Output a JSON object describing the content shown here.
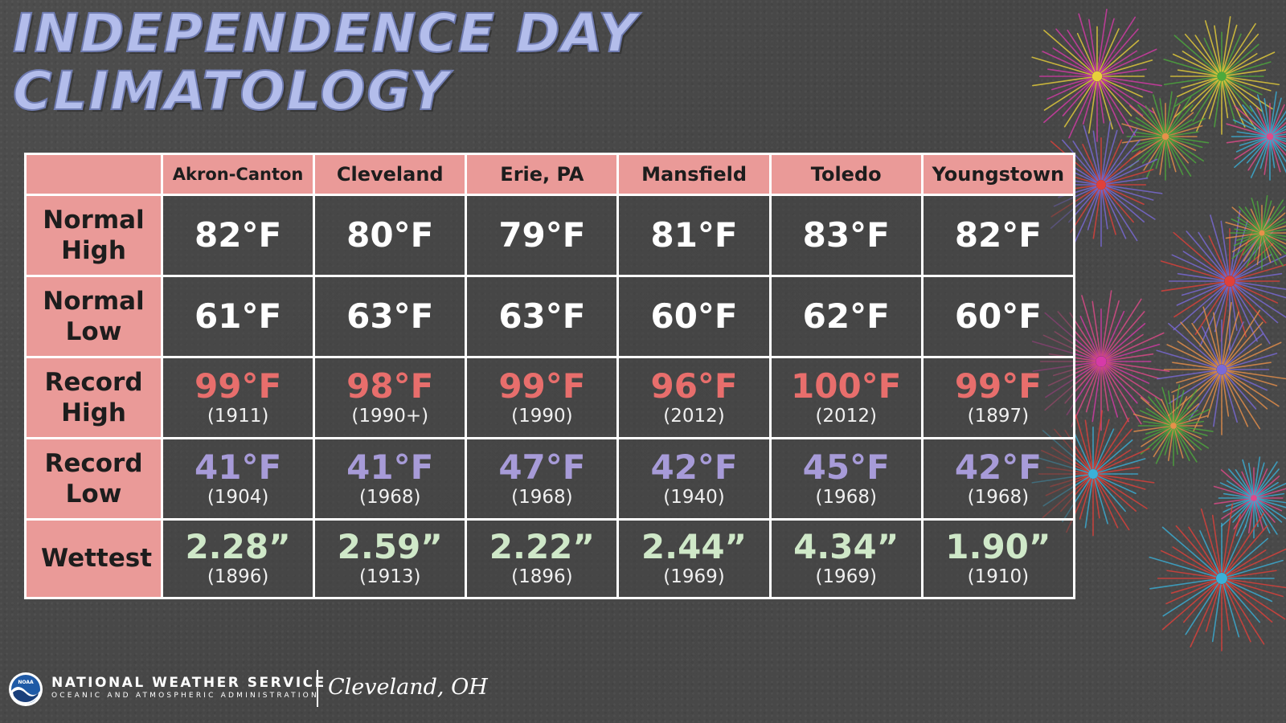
{
  "title": {
    "line1": "INDEPENDENCE DAY",
    "line2": "CLIMATOLOGY"
  },
  "table": {
    "corner": "",
    "columns": [
      "Akron-Canton",
      "Cleveland",
      "Erie, PA",
      "Mansfield",
      "Toledo",
      "Youngstown"
    ],
    "rows": [
      {
        "label": "Normal High",
        "color": "#ffffff",
        "cells": [
          {
            "value": "82°F",
            "year": ""
          },
          {
            "value": "80°F",
            "year": ""
          },
          {
            "value": "79°F",
            "year": ""
          },
          {
            "value": "81°F",
            "year": ""
          },
          {
            "value": "83°F",
            "year": ""
          },
          {
            "value": "82°F",
            "year": ""
          }
        ]
      },
      {
        "label": "Normal Low",
        "color": "#ffffff",
        "cells": [
          {
            "value": "61°F",
            "year": ""
          },
          {
            "value": "63°F",
            "year": ""
          },
          {
            "value": "63°F",
            "year": ""
          },
          {
            "value": "60°F",
            "year": ""
          },
          {
            "value": "62°F",
            "year": ""
          },
          {
            "value": "60°F",
            "year": ""
          }
        ]
      },
      {
        "label": "Record High",
        "color": "#e86e6c",
        "cells": [
          {
            "value": "99°F",
            "year": "(1911)"
          },
          {
            "value": "98°F",
            "year": "(1990+)"
          },
          {
            "value": "99°F",
            "year": "(1990)"
          },
          {
            "value": "96°F",
            "year": "(2012)"
          },
          {
            "value": "100°F",
            "year": "(2012)"
          },
          {
            "value": "99°F",
            "year": "(1897)"
          }
        ]
      },
      {
        "label": "Record Low",
        "color": "#a79bd8",
        "cells": [
          {
            "value": "41°F",
            "year": "(1904)"
          },
          {
            "value": "41°F",
            "year": "(1968)"
          },
          {
            "value": "47°F",
            "year": "(1968)"
          },
          {
            "value": "42°F",
            "year": "(1940)"
          },
          {
            "value": "45°F",
            "year": "(1968)"
          },
          {
            "value": "42°F",
            "year": "(1968)"
          }
        ]
      },
      {
        "label": "Wettest",
        "color": "#cfe8c8",
        "cells": [
          {
            "value": "2.28”",
            "year": "(1896)"
          },
          {
            "value": "2.59”",
            "year": "(1913)"
          },
          {
            "value": "2.22”",
            "year": "(1896)"
          },
          {
            "value": "2.44”",
            "year": "(1969)"
          },
          {
            "value": "4.34”",
            "year": "(1969)"
          },
          {
            "value": "1.90”",
            "year": "(1910)"
          }
        ]
      }
    ]
  },
  "footer": {
    "logo_icon": "noaa-logo-icon",
    "logo_text": "NOAA",
    "agency": "NATIONAL WEATHER SERVICE",
    "subtitle": "OCEANIC AND ATMOSPHERIC ADMINISTRATION",
    "office": "Cleveland, OH"
  },
  "decoration": {
    "icon": "fireworks-icon",
    "colors": [
      "#d63aa8",
      "#e8d03a",
      "#4caa3c",
      "#e8904a",
      "#7a6ad8",
      "#e0403a",
      "#3ab0d8",
      "#e04a8a"
    ]
  }
}
